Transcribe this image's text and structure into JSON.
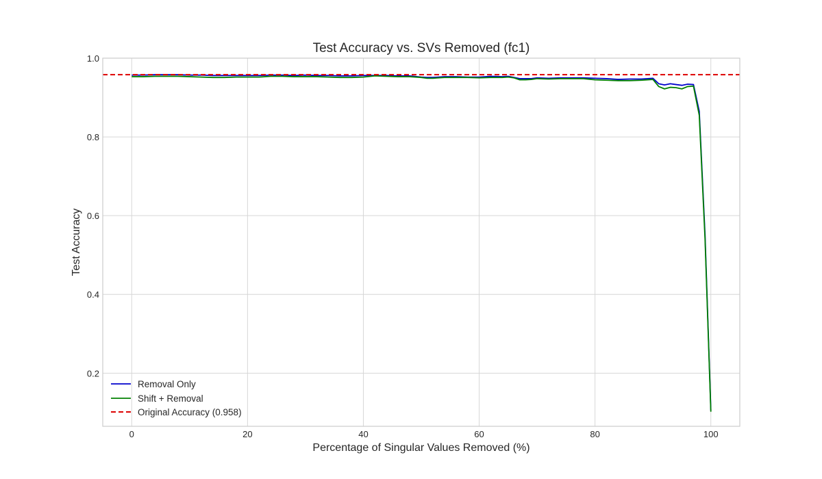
{
  "chart_data": {
    "type": "line",
    "title": "Test Accuracy vs. SVs Removed (fc1)",
    "xlabel": "Percentage of Singular Values Removed (%)",
    "ylabel": "Test Accuracy",
    "xlim": [
      -5,
      105
    ],
    "ylim": [
      0.065,
      1.0
    ],
    "xticks": [
      0,
      20,
      40,
      60,
      80,
      100
    ],
    "xtick_labels": [
      "0",
      "20",
      "40",
      "60",
      "80",
      "100"
    ],
    "yticks": [
      0.2,
      0.4,
      0.6,
      0.8,
      1.0
    ],
    "ytick_labels": [
      "0.2",
      "0.4",
      "0.6",
      "0.8",
      "1.0"
    ],
    "grid": true,
    "legend_position": "bottom-left",
    "series": [
      {
        "name": "Removal Only",
        "color": "#0000cc",
        "style": "solid",
        "x": [
          0,
          2,
          4,
          6,
          8,
          10,
          12,
          14,
          16,
          18,
          20,
          22,
          24,
          26,
          28,
          30,
          32,
          34,
          36,
          38,
          40,
          42,
          44,
          46,
          48,
          50,
          51,
          52,
          53,
          54,
          56,
          58,
          60,
          62,
          64,
          65,
          66,
          67,
          68,
          69,
          70,
          72,
          74,
          76,
          78,
          80,
          82,
          84,
          86,
          88,
          90,
          91,
          92,
          93,
          94,
          95,
          96,
          97,
          98,
          99,
          100
        ],
        "y": [
          0.957,
          0.957,
          0.958,
          0.958,
          0.958,
          0.957,
          0.957,
          0.956,
          0.956,
          0.956,
          0.956,
          0.956,
          0.957,
          0.957,
          0.956,
          0.957,
          0.956,
          0.956,
          0.955,
          0.955,
          0.956,
          0.956,
          0.956,
          0.955,
          0.955,
          0.952,
          0.951,
          0.951,
          0.952,
          0.953,
          0.953,
          0.952,
          0.952,
          0.954,
          0.953,
          0.954,
          0.951,
          0.948,
          0.948,
          0.948,
          0.95,
          0.949,
          0.95,
          0.95,
          0.95,
          0.949,
          0.948,
          0.946,
          0.947,
          0.947,
          0.949,
          0.935,
          0.932,
          0.935,
          0.933,
          0.931,
          0.934,
          0.933,
          0.865,
          0.55,
          0.105
        ]
      },
      {
        "name": "Shift + Removal",
        "color": "#008000",
        "style": "solid",
        "x": [
          0,
          2,
          4,
          6,
          8,
          10,
          12,
          14,
          16,
          18,
          20,
          22,
          24,
          26,
          28,
          30,
          32,
          34,
          36,
          38,
          40,
          42,
          44,
          46,
          48,
          50,
          51,
          52,
          53,
          54,
          56,
          58,
          60,
          62,
          64,
          65,
          66,
          67,
          68,
          69,
          70,
          72,
          74,
          76,
          78,
          80,
          82,
          84,
          86,
          88,
          90,
          91,
          92,
          93,
          94,
          95,
          96,
          97,
          98,
          99,
          100
        ],
        "y": [
          0.953,
          0.953,
          0.954,
          0.954,
          0.954,
          0.953,
          0.952,
          0.951,
          0.951,
          0.952,
          0.952,
          0.952,
          0.954,
          0.954,
          0.953,
          0.953,
          0.953,
          0.952,
          0.951,
          0.951,
          0.952,
          0.955,
          0.954,
          0.953,
          0.953,
          0.951,
          0.949,
          0.949,
          0.95,
          0.951,
          0.951,
          0.951,
          0.95,
          0.951,
          0.951,
          0.952,
          0.95,
          0.945,
          0.945,
          0.946,
          0.948,
          0.947,
          0.948,
          0.948,
          0.948,
          0.945,
          0.944,
          0.943,
          0.943,
          0.944,
          0.946,
          0.928,
          0.922,
          0.926,
          0.925,
          0.922,
          0.928,
          0.929,
          0.855,
          0.54,
          0.102
        ]
      },
      {
        "name": "Original Accuracy (0.958)",
        "color": "#dd0000",
        "style": "dashed",
        "x": [
          -5,
          105
        ],
        "y": [
          0.958,
          0.958
        ]
      }
    ]
  }
}
